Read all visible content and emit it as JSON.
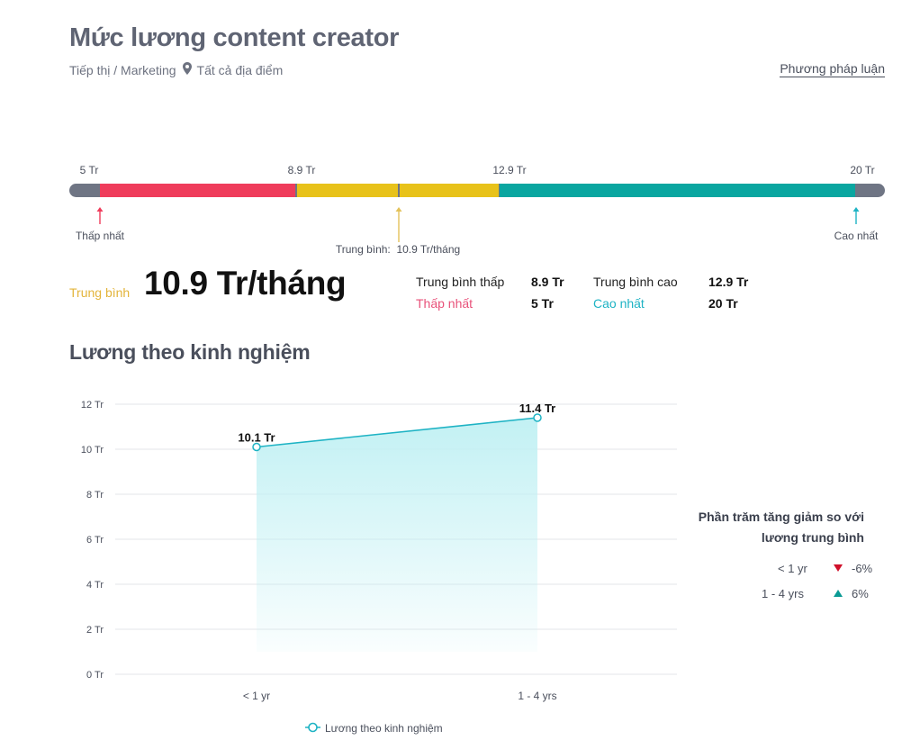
{
  "header": {
    "title": "Mức lương content creator",
    "category": "Tiếp thị / Marketing",
    "location": "Tất cả địa điểm",
    "methodology_link": "Phương pháp luận"
  },
  "salary_range": {
    "ticks": [
      {
        "label": "5 Tr",
        "value": 5
      },
      {
        "label": "8.9 Tr",
        "value": 8.9
      },
      {
        "label": "12.9 Tr",
        "value": 12.9
      },
      {
        "label": "20 Tr",
        "value": 20
      }
    ],
    "lowest_label": "Thấp nhất",
    "average_label": "Trung bình:",
    "average_value": "10.9 Tr/tháng",
    "highest_label": "Cao nhất",
    "colors": {
      "track": "#6f7584",
      "low": "#ef3c5b",
      "mid": "#e8c21a",
      "high": "#0aa6a0"
    }
  },
  "summary": {
    "average_caption": "Trung bình",
    "average_value": "10.9 Tr/tháng",
    "avg_low_label": "Trung bình thấp",
    "avg_low_value": "8.9 Tr",
    "avg_high_label": "Trung bình cao",
    "avg_high_value": "12.9 Tr",
    "lowest_label": "Thấp nhất",
    "lowest_value": "5 Tr",
    "highest_label": "Cao nhất",
    "highest_value": "20 Tr",
    "colors": {
      "average": "#e3b43a",
      "lowest": "#e8527a",
      "highest": "#1eb3c4"
    }
  },
  "experience_section": {
    "title": "Lương theo kinh nghiệm"
  },
  "chart_data": {
    "type": "area",
    "categories": [
      "< 1 yr",
      "1 - 4 yrs"
    ],
    "series": [
      {
        "name": "Lương theo kinh nghiệm",
        "values": [
          10.1,
          11.4
        ],
        "labels": [
          "10.1 Tr",
          "11.4 Tr"
        ],
        "color": "#1eb3c4"
      }
    ],
    "y_ticks": [
      "0 Tr",
      "2 Tr",
      "4 Tr",
      "6 Tr",
      "8 Tr",
      "10 Tr",
      "12 Tr"
    ],
    "ylim": [
      0,
      12
    ],
    "grid": true,
    "legend": "bottom"
  },
  "percent_change": {
    "title_line1": "Phần trăm tăng giảm so với",
    "title_line2": "lương trung bình",
    "rows": [
      {
        "label": "< 1 yr",
        "direction": "down",
        "value": "-6%",
        "color": "#d0102a"
      },
      {
        "label": "1 - 4 yrs",
        "direction": "up",
        "value": "6%",
        "color": "#0a9a94"
      }
    ]
  }
}
